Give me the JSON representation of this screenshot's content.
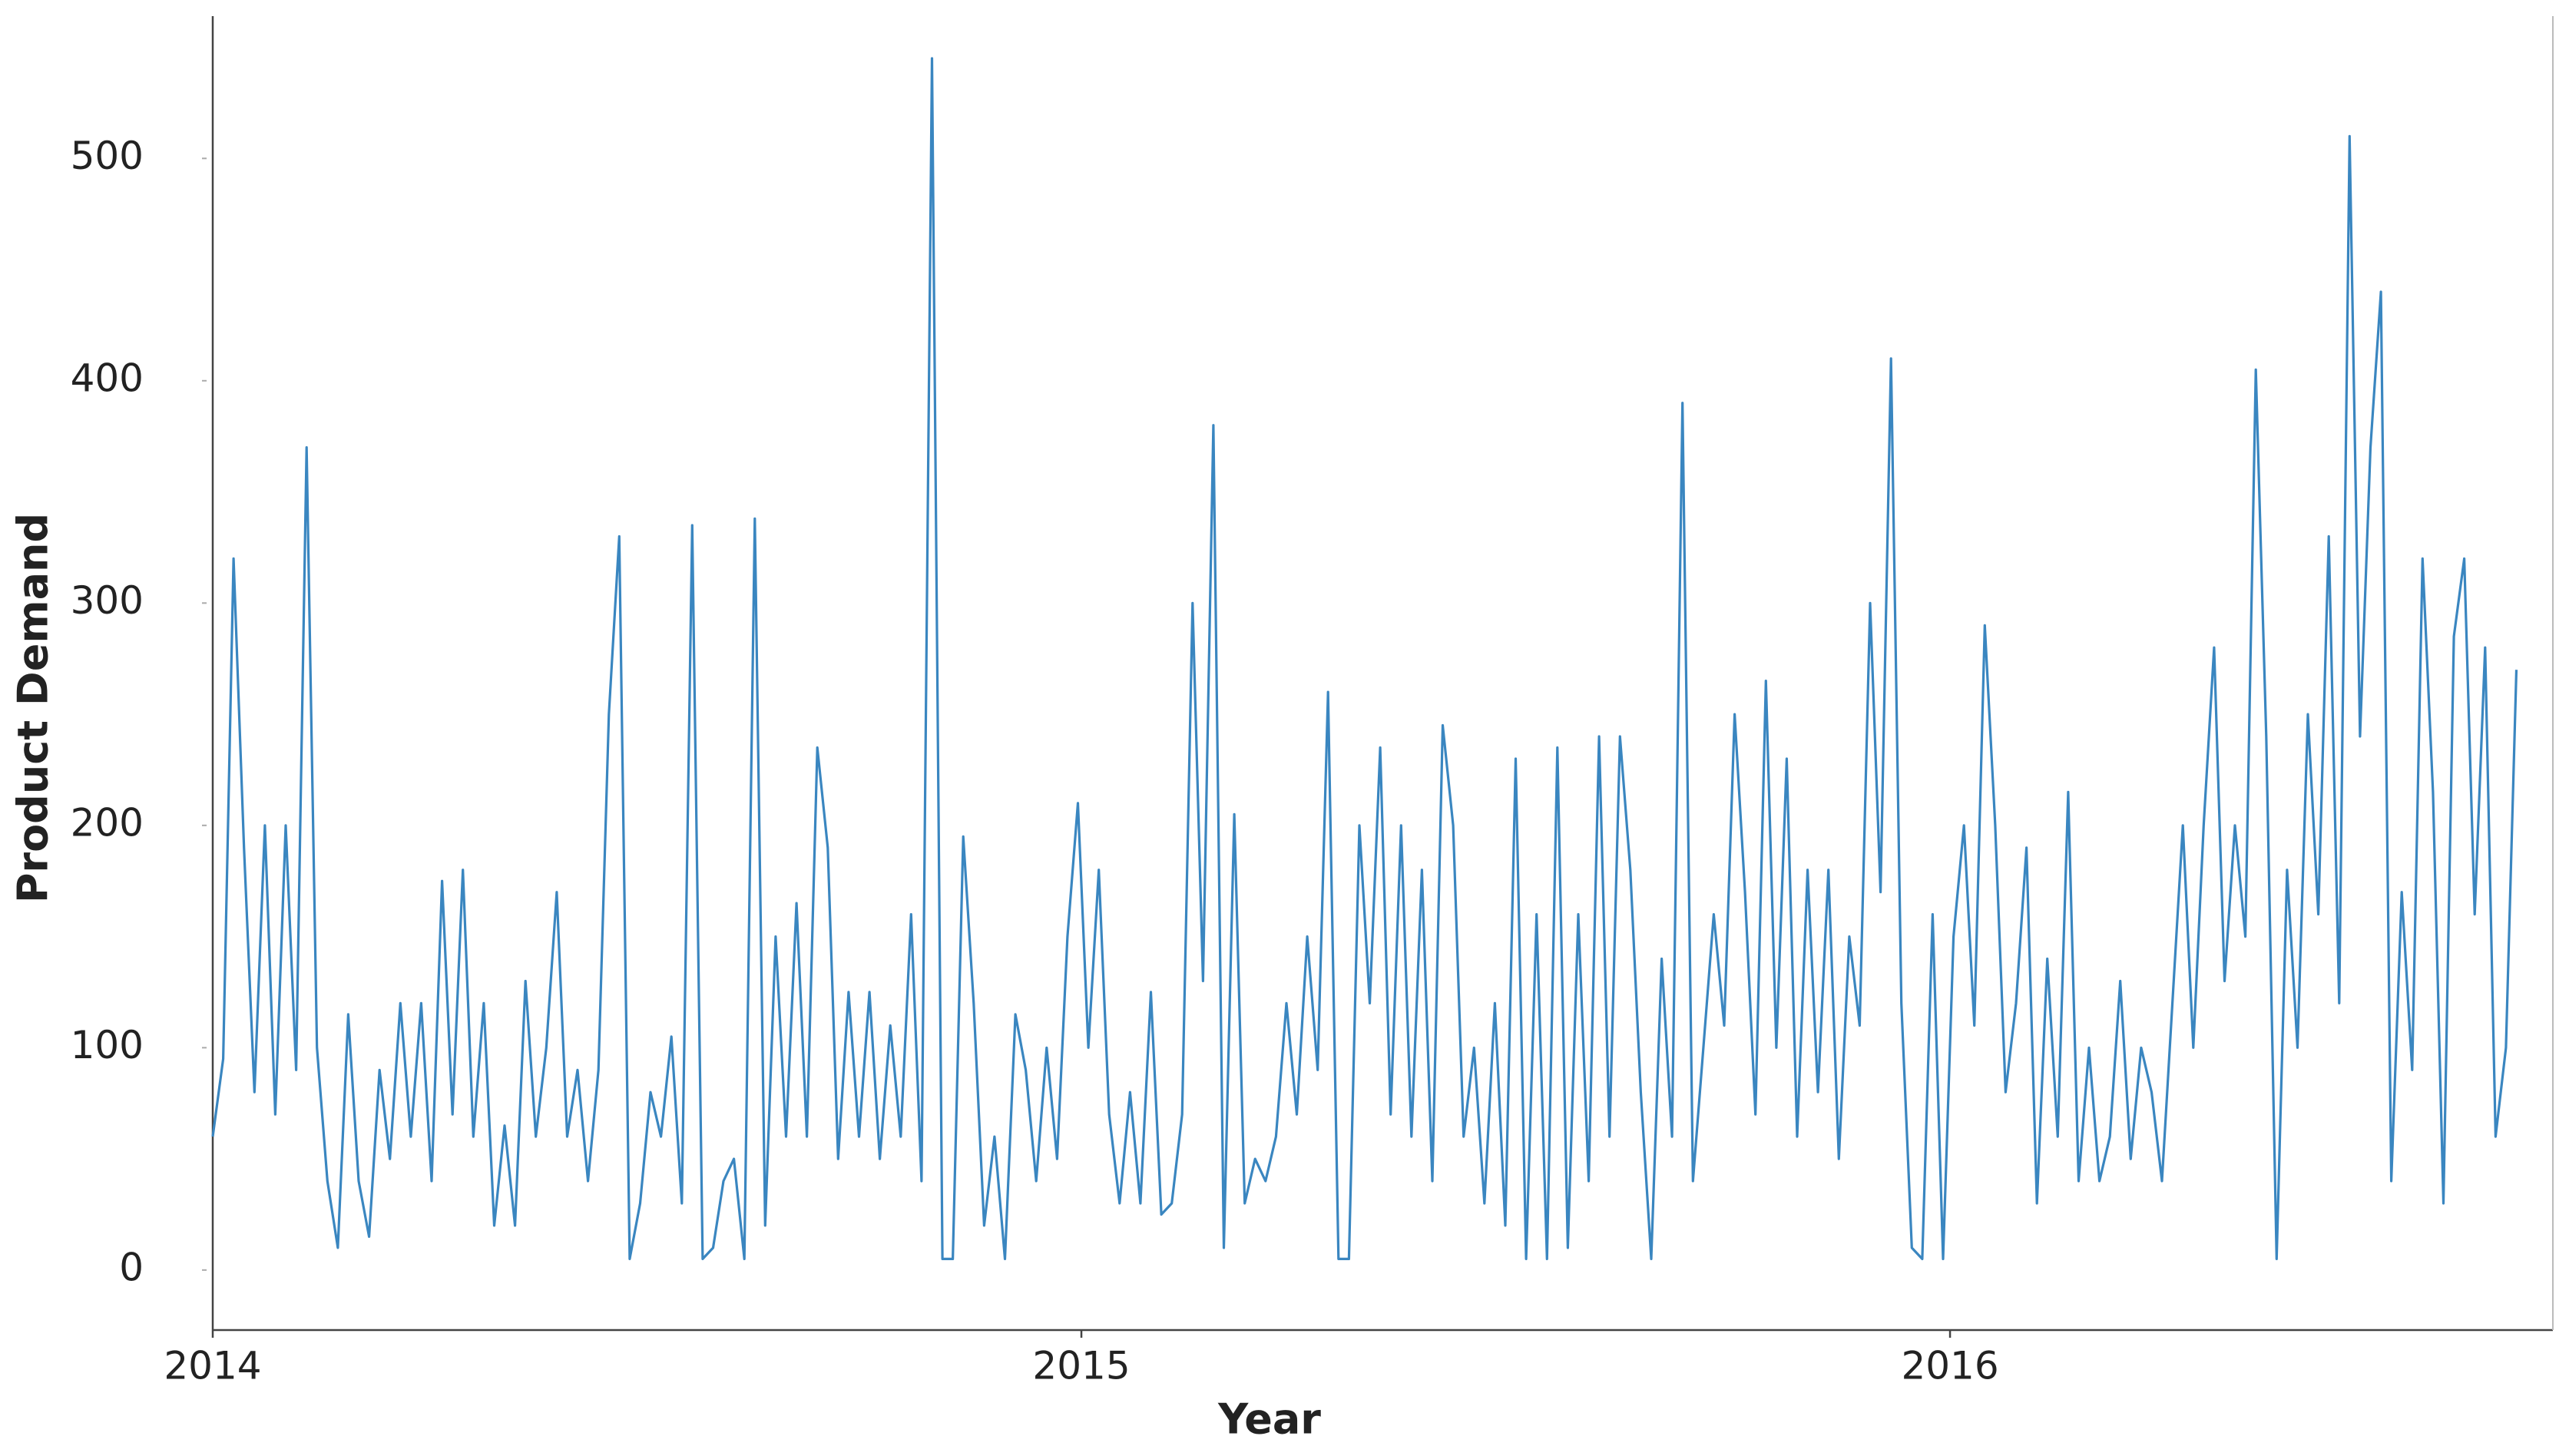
{
  "chart_data": {
    "type": "line",
    "x_label": "Year",
    "y_label": "Product Demand",
    "xlim": [
      2014,
      2016.694
    ],
    "ylim": [
      -27,
      564
    ],
    "xticks": [
      2014,
      2015,
      2016
    ],
    "yticks": [
      0,
      100,
      200,
      300,
      400,
      500
    ],
    "grid": false,
    "x": [
      2014,
      2014.012,
      2014.024,
      2014.036,
      2014.048,
      2014.06,
      2014.072,
      2014.084,
      2014.096,
      2014.108,
      2014.12,
      2014.132,
      2014.144,
      2014.156,
      2014.168,
      2014.18,
      2014.192,
      2014.204,
      2014.216,
      2014.228,
      2014.24,
      2014.252,
      2014.264,
      2014.276,
      2014.288,
      2014.3,
      2014.312,
      2014.324,
      2014.336,
      2014.348,
      2014.36,
      2014.372,
      2014.384,
      2014.396,
      2014.408,
      2014.42,
      2014.432,
      2014.444,
      2014.456,
      2014.468,
      2014.48,
      2014.492,
      2014.504,
      2014.516,
      2014.528,
      2014.54,
      2014.552,
      2014.564,
      2014.576,
      2014.588,
      2014.6,
      2014.612,
      2014.624,
      2014.636,
      2014.648,
      2014.66,
      2014.672,
      2014.684,
      2014.696,
      2014.708,
      2014.72,
      2014.732,
      2014.744,
      2014.756,
      2014.768,
      2014.78,
      2014.792,
      2014.804,
      2014.816,
      2014.828,
      2014.84,
      2014.852,
      2014.864,
      2014.876,
      2014.888,
      2014.9,
      2014.912,
      2014.924,
      2014.936,
      2014.948,
      2014.96,
      2014.972,
      2014.984,
      2014.996,
      2015.008,
      2015.02,
      2015.032,
      2015.044,
      2015.056,
      2015.068,
      2015.08,
      2015.092,
      2015.104,
      2015.116,
      2015.128,
      2015.14,
      2015.152,
      2015.164,
      2015.176,
      2015.188,
      2015.2,
      2015.212,
      2015.224,
      2015.236,
      2015.248,
      2015.26,
      2015.272,
      2015.284,
      2015.296,
      2015.308,
      2015.32,
      2015.332,
      2015.344,
      2015.356,
      2015.368,
      2015.38,
      2015.392,
      2015.404,
      2015.416,
      2015.428,
      2015.44,
      2015.452,
      2015.464,
      2015.476,
      2015.488,
      2015.5,
      2015.512,
      2015.524,
      2015.536,
      2015.548,
      2015.56,
      2015.572,
      2015.584,
      2015.596,
      2015.608,
      2015.62,
      2015.632,
      2015.644,
      2015.656,
      2015.668,
      2015.68,
      2015.692,
      2015.704,
      2015.716,
      2015.728,
      2015.74,
      2015.752,
      2015.764,
      2015.776,
      2015.788,
      2015.8,
      2015.812,
      2015.824,
      2015.836,
      2015.848,
      2015.86,
      2015.872,
      2015.884,
      2015.896,
      2015.908,
      2015.92,
      2015.932,
      2015.944,
      2015.956,
      2015.968,
      2015.98,
      2015.992,
      2016.004,
      2016.016,
      2016.028,
      2016.04,
      2016.052,
      2016.064,
      2016.076,
      2016.088,
      2016.1,
      2016.112,
      2016.124,
      2016.136,
      2016.148,
      2016.16,
      2016.172,
      2016.184,
      2016.196,
      2016.208,
      2016.22,
      2016.232,
      2016.244,
      2016.256,
      2016.268,
      2016.28,
      2016.292,
      2016.304,
      2016.316,
      2016.328,
      2016.34,
      2016.352,
      2016.364,
      2016.376,
      2016.388,
      2016.4,
      2016.412,
      2016.424,
      2016.436,
      2016.448,
      2016.46,
      2016.472,
      2016.484,
      2016.496,
      2016.508,
      2016.52,
      2016.532,
      2016.544,
      2016.556,
      2016.568,
      2016.58,
      2016.592,
      2016.604,
      2016.616,
      2016.628,
      2016.64,
      2016.652
    ],
    "series": [
      {
        "color": "#3a86c0",
        "values": [
          60,
          95,
          320,
          190,
          80,
          200,
          70,
          200,
          90,
          370,
          100,
          40,
          10,
          115,
          40,
          15,
          90,
          50,
          120,
          60,
          120,
          40,
          175,
          70,
          180,
          60,
          120,
          20,
          65,
          20,
          130,
          60,
          100,
          170,
          60,
          90,
          40,
          90,
          250,
          330,
          5,
          30,
          80,
          60,
          105,
          30,
          335,
          5,
          10,
          40,
          50,
          5,
          338,
          20,
          150,
          60,
          165,
          60,
          235,
          190,
          50,
          125,
          60,
          125,
          50,
          110,
          60,
          160,
          40,
          545,
          5,
          5,
          195,
          120,
          20,
          60,
          5,
          115,
          90,
          40,
          100,
          50,
          150,
          210,
          100,
          180,
          70,
          30,
          80,
          30,
          125,
          25,
          30,
          70,
          300,
          130,
          380,
          10,
          205,
          30,
          50,
          40,
          60,
          120,
          70,
          150,
          90,
          260,
          5,
          5,
          200,
          120,
          235,
          70,
          200,
          60,
          180,
          40,
          245,
          200,
          60,
          100,
          30,
          120,
          20,
          230,
          5,
          160,
          5,
          235,
          10,
          160,
          40,
          240,
          60,
          240,
          180,
          80,
          5,
          140,
          60,
          390,
          40,
          100,
          160,
          110,
          250,
          170,
          70,
          265,
          100,
          230,
          60,
          180,
          80,
          180,
          50,
          150,
          110,
          300,
          170,
          410,
          120,
          10,
          5,
          160,
          5,
          150,
          200,
          110,
          290,
          200,
          80,
          120,
          190,
          30,
          140,
          60,
          215,
          40,
          100,
          40,
          60,
          130,
          50,
          100,
          80,
          40,
          120,
          200,
          100,
          200,
          280,
          130,
          200,
          150,
          405,
          240,
          5,
          180,
          100,
          250,
          160,
          330,
          120,
          510,
          240,
          370,
          440,
          40,
          170,
          90,
          320,
          215,
          30,
          285,
          320,
          160,
          280,
          60,
          100,
          270
        ]
      }
    ]
  }
}
